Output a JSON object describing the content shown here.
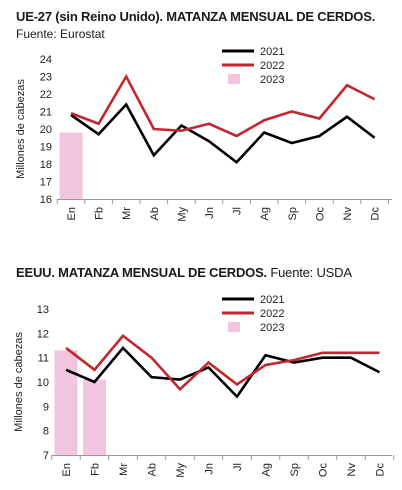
{
  "chart_data": [
    {
      "type": "line",
      "title": "UE-27 (sin Reino Unido). MATANZA MENSUAL DE CERDOS.",
      "subtitle": "Fuente: Eurostat",
      "ylabel": "Millones de cabezas",
      "xlabel": "",
      "ylim": [
        16,
        24
      ],
      "yticks": [
        16,
        17,
        18,
        19,
        20,
        21,
        22,
        23,
        24
      ],
      "categories": [
        "En",
        "Fb",
        "Mr",
        "Ab",
        "My",
        "Jn",
        "Jl",
        "Ag",
        "Sp",
        "Oc",
        "Nv",
        "Dc"
      ],
      "legend_position": "top-right",
      "grid": false,
      "series": [
        {
          "name": "2021",
          "type": "line",
          "color": "#000000",
          "values": [
            20.8,
            19.7,
            21.4,
            18.5,
            20.2,
            19.3,
            18.1,
            19.8,
            19.2,
            19.6,
            20.7,
            19.5
          ]
        },
        {
          "name": "2022",
          "type": "line",
          "color": "#c1272d",
          "values": [
            20.9,
            20.3,
            23.0,
            20.0,
            19.9,
            20.3,
            19.6,
            20.5,
            21.0,
            20.6,
            22.5,
            21.7
          ]
        },
        {
          "name": "2023",
          "type": "bar",
          "color": "#f2c4dd",
          "values": [
            19.8,
            null,
            null,
            null,
            null,
            null,
            null,
            null,
            null,
            null,
            null,
            null
          ]
        }
      ]
    },
    {
      "type": "line",
      "title": "EEUU. MATANZA MENSUAL DE CERDOS.",
      "subtitle": "Fuente: USDA",
      "ylabel": "Millones de cabezas",
      "xlabel": "",
      "ylim": [
        7,
        13
      ],
      "yticks": [
        7,
        8,
        9,
        10,
        11,
        12,
        13
      ],
      "categories": [
        "En",
        "Fb",
        "Mr",
        "Ab",
        "My",
        "Jn",
        "Jl",
        "Ag",
        "Sp",
        "Oc",
        "Nv",
        "Dc"
      ],
      "legend_position": "top-right",
      "grid": false,
      "series": [
        {
          "name": "2021",
          "type": "line",
          "color": "#000000",
          "values": [
            10.5,
            10.0,
            11.4,
            10.2,
            10.1,
            10.6,
            9.4,
            11.1,
            10.8,
            11.0,
            11.0,
            10.4
          ]
        },
        {
          "name": "2022",
          "type": "line",
          "color": "#c1272d",
          "values": [
            11.4,
            10.5,
            11.9,
            11.0,
            9.7,
            10.8,
            9.9,
            10.7,
            10.9,
            11.2,
            11.2,
            11.2
          ]
        },
        {
          "name": "2023",
          "type": "bar",
          "color": "#f2c4dd",
          "values": [
            11.3,
            10.1,
            null,
            null,
            null,
            null,
            null,
            null,
            null,
            null,
            null,
            null
          ]
        }
      ]
    }
  ]
}
